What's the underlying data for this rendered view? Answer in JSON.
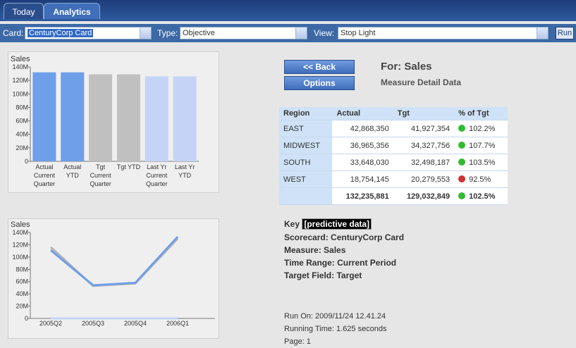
{
  "tabs": [
    "Today",
    "Analytics"
  ],
  "toolbar": {
    "card_label": "Card:",
    "card_value": "CenturyCorp Card",
    "type_label": "Type:",
    "type_value": "Objective",
    "view_label": "View:",
    "view_value": "Stop Light",
    "run": "Run"
  },
  "chart_data": [
    {
      "type": "bar",
      "title": "Sales",
      "categories": [
        [
          "Actual",
          "Current",
          "Quarter"
        ],
        [
          "Actual",
          "YTD"
        ],
        [
          "Tgt",
          "Current",
          "Quarter"
        ],
        [
          "Tgt  YTD"
        ],
        [
          "Last  Yr",
          "Current",
          "Quarter"
        ],
        [
          "Last  Yr",
          "YTD"
        ]
      ],
      "values": [
        132000000,
        132000000,
        129000000,
        129000000,
        126000000,
        126000000
      ],
      "colors": [
        "#6f9fe8",
        "#6f9fe8",
        "#c0c0c0",
        "#c0c0c0",
        "#c5d4f6",
        "#c5d4f6"
      ],
      "ylim": [
        0,
        140000000
      ],
      "yticks": [
        0,
        {
          "value": 20000000,
          "label": "20M"
        },
        {
          "value": 40000000,
          "label": "40M"
        },
        {
          "value": 60000000,
          "label": "60M"
        },
        {
          "value": 80000000,
          "label": "80M"
        },
        {
          "value": 100000000,
          "label": "100M"
        },
        {
          "value": 120000000,
          "label": "120M"
        },
        {
          "value": 140000000,
          "label": "140M"
        }
      ]
    },
    {
      "type": "line",
      "title": "Sales",
      "categories": [
        "2005Q2",
        "2005Q3",
        "2005Q4",
        "2006Q1"
      ],
      "series": [
        {
          "color": "#c5d4f6",
          "values": [
            0,
            0,
            0,
            0
          ]
        },
        {
          "color": "#b4b4b4",
          "values": [
            116000000,
            53000000,
            57000000,
            130000000
          ]
        },
        {
          "color": "#6f9fe8",
          "values": [
            111000000,
            54000000,
            58000000,
            133000000
          ]
        }
      ],
      "ylim": [
        0,
        140000000
      ],
      "yticks": [
        0,
        {
          "value": 20000000,
          "label": "20M"
        },
        {
          "value": 40000000,
          "label": "40M"
        },
        {
          "value": 60000000,
          "label": "60M"
        },
        {
          "value": 80000000,
          "label": "80M"
        },
        {
          "value": 100000000,
          "label": "100M"
        },
        {
          "value": 120000000,
          "label": "120M"
        },
        {
          "value": 140000000,
          "label": "140M"
        }
      ]
    }
  ],
  "buttons": {
    "back": "<< Back",
    "options": "Options"
  },
  "heading": {
    "title": "For: Sales",
    "subtitle": "Measure Detail Data"
  },
  "table": {
    "header": [
      "Region",
      "Actual",
      "Tgt",
      "% of Tgt"
    ],
    "rows": [
      [
        "EAST",
        "42,868,350",
        "41,927,354",
        "102.2%"
      ],
      [
        "MIDWEST",
        "36,965,356",
        "34,327,756",
        "107.7%"
      ],
      [
        "SOUTH",
        "33,648,030",
        "32,498,187",
        "103.5%"
      ],
      [
        "WEST",
        "18,754,145",
        "20,279,553",
        "92.5%"
      ],
      [
        "",
        "132,235,881",
        "129,032,849",
        "102.5%"
      ]
    ],
    "status": [
      "#33bb33",
      "#33bb33",
      "#33bb33",
      "#cc3333",
      "#33bb33"
    ]
  },
  "key": {
    "label": "Key",
    "tag": "[predictive data]",
    "lines": [
      "Scorecard: CenturyCorp Card",
      "Measure: Sales",
      "Time Range: Current Period",
      "Target Field: Target"
    ]
  },
  "run_info": [
    "Run On: 2009/11/24 12.41.24",
    "Running Time: 1.625 seconds",
    "Page: 1"
  ]
}
